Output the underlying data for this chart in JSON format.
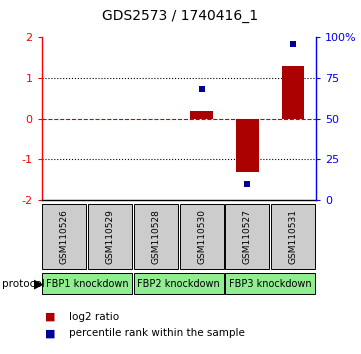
{
  "title": "GDS2573 / 1740416_1",
  "samples": [
    "GSM110526",
    "GSM110529",
    "GSM110528",
    "GSM110530",
    "GSM110527",
    "GSM110531"
  ],
  "log2_ratios": [
    null,
    null,
    null,
    0.18,
    -1.3,
    1.28
  ],
  "percentile_ranks": [
    null,
    null,
    null,
    68,
    10,
    96
  ],
  "ylim": [
    -2,
    2
  ],
  "right_ylim": [
    0,
    100
  ],
  "bar_color": "#aa0000",
  "dot_color": "#000099",
  "bg_color": "#ffffff",
  "sample_bg": "#cccccc",
  "group_color": "#90EE90",
  "zero_line_color": "#cc0000",
  "title_fontsize": 10,
  "group_labels": [
    "FBP1 knockdown",
    "FBP2 knockdown",
    "FBP3 knockdown"
  ],
  "group_ranges": [
    [
      0,
      1
    ],
    [
      2,
      3
    ],
    [
      4,
      5
    ]
  ],
  "legend_label_log2": "log2 ratio",
  "legend_label_pct": "percentile rank within the sample",
  "left_yticks": [
    -2,
    -1,
    0,
    1,
    2
  ],
  "right_yticks": [
    0,
    25,
    50,
    75,
    100
  ]
}
